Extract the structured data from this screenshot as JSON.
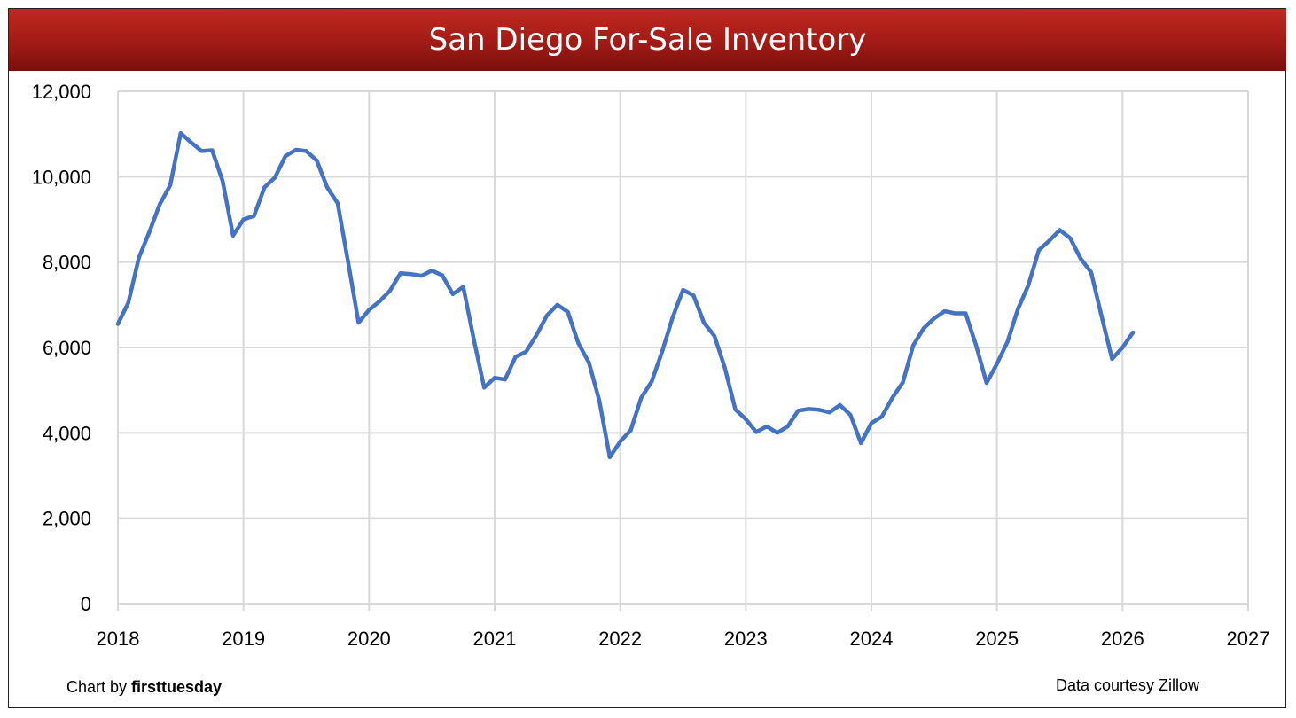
{
  "chart_data": {
    "type": "line",
    "title": "San Diego For-Sale Inventory",
    "xlabel": "",
    "ylabel": "",
    "xlim": [
      2018,
      2027
    ],
    "ylim": [
      0,
      12000
    ],
    "grid": true,
    "x_ticks": [
      "2018",
      "2019",
      "2020",
      "2021",
      "2022",
      "2023",
      "2024",
      "2025",
      "2026",
      "2027"
    ],
    "y_ticks": [
      "0",
      "2,000",
      "4,000",
      "6,000",
      "8,000",
      "10,000",
      "12,000"
    ],
    "y_tick_values": [
      0,
      2000,
      4000,
      6000,
      8000,
      10000,
      12000
    ],
    "series": [
      {
        "name": "San Diego For-Sale Inventory",
        "color": "#4472c4",
        "start": 2018,
        "step_months": 1,
        "values": [
          6550,
          7050,
          8100,
          8700,
          9350,
          9800,
          11020,
          10800,
          10600,
          10620,
          9900,
          8620,
          9000,
          9080,
          9750,
          9980,
          10480,
          10630,
          10600,
          10380,
          9750,
          9380,
          8000,
          6580,
          6880,
          7080,
          7330,
          7740,
          7720,
          7680,
          7800,
          7690,
          7250,
          7420,
          6200,
          5060,
          5290,
          5250,
          5780,
          5900,
          6290,
          6750,
          7000,
          6830,
          6100,
          5650,
          4750,
          3430,
          3800,
          4060,
          4820,
          5200,
          5900,
          6700,
          7350,
          7220,
          6580,
          6270,
          5520,
          4550,
          4320,
          4020,
          4150,
          4000,
          4150,
          4520,
          4560,
          4540,
          4480,
          4650,
          4420,
          3760,
          4230,
          4380,
          4820,
          5180,
          6050,
          6450,
          6680,
          6850,
          6800,
          6800,
          6050,
          5170,
          5620,
          6130,
          6900,
          7460,
          8280,
          8500,
          8750,
          8560,
          8080,
          7760,
          6730,
          5730,
          6000,
          6350
        ]
      }
    ]
  },
  "footer": {
    "credit_prefix": "Chart by ",
    "credit_brand": "firsttuesday",
    "source": "Data courtesy Zillow"
  }
}
